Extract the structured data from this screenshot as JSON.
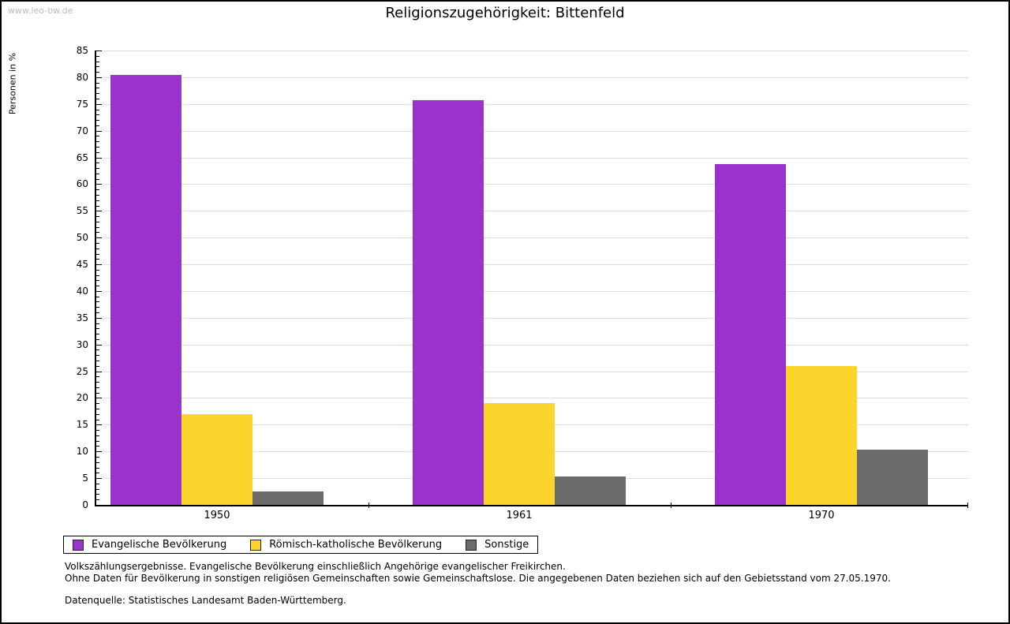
{
  "watermark": "www.leo-bw.de",
  "title": "Religionszugehörigkeit: Bittenfeld",
  "chart_data": {
    "type": "bar",
    "categories": [
      "1950",
      "1961",
      "1970"
    ],
    "series": [
      {
        "name": "Evangelische Bevölkerung",
        "color": "#9933cc",
        "values": [
          80.5,
          75.7,
          63.7
        ]
      },
      {
        "name": "Römisch-katholische Bevölkerung",
        "color": "#fbd42c",
        "values": [
          17.0,
          19.0,
          26.0
        ]
      },
      {
        "name": "Sonstige",
        "color": "#6b6b6b",
        "values": [
          2.5,
          5.3,
          10.4
        ]
      }
    ],
    "title": "Religionszugehörigkeit: Bittenfeld",
    "xlabel": "",
    "ylabel": "Personen in %",
    "ylim": [
      0,
      85
    ],
    "ytick_step": 5,
    "ytick_minor_step": 1,
    "grid": true,
    "legend_position": "bottom"
  },
  "footnotes": [
    "Volkszählungsergebnisse. Evangelische Bevölkerung einschließlich Angehörige evangelischer Freikirchen.",
    "Ohne Daten für Bevölkerung in sonstigen religiösen Gemeinschaften sowie Gemeinschaftslose. Die angegebenen Daten beziehen sich auf den Gebietsstand vom 27.05.1970."
  ],
  "source": "Datenquelle: Statistisches Landesamt Baden-Württemberg."
}
